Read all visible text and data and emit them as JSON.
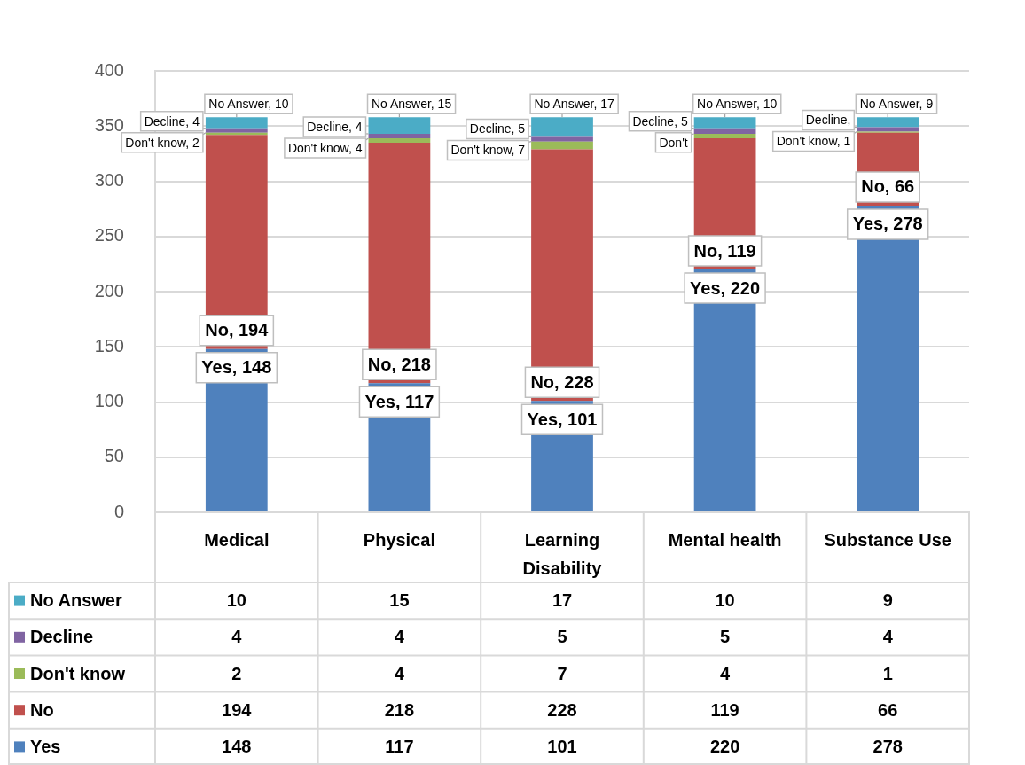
{
  "chart_data": {
    "type": "bar",
    "stacked": true,
    "categories": [
      "Medical",
      "Physical",
      "Learning Disability",
      "Mental health",
      "Substance Use"
    ],
    "series": [
      {
        "name": "Yes",
        "color": "#4f81bd",
        "values": [
          148,
          117,
          101,
          220,
          278
        ]
      },
      {
        "name": "No",
        "color": "#c0504d",
        "values": [
          194,
          218,
          228,
          119,
          66
        ]
      },
      {
        "name": "Don't know",
        "color": "#9bbb59",
        "values": [
          2,
          4,
          7,
          4,
          1
        ]
      },
      {
        "name": "Decline",
        "color": "#8064a2",
        "values": [
          4,
          4,
          5,
          5,
          4
        ]
      },
      {
        "name": "No Answer",
        "color": "#4bacc6",
        "values": [
          10,
          15,
          17,
          10,
          9
        ]
      }
    ],
    "ylim": [
      0,
      400
    ],
    "yticks": [
      0,
      50,
      100,
      150,
      200,
      250,
      300,
      350,
      400
    ],
    "grid": "y",
    "legend": "bottom",
    "data_labels": true,
    "annotations": [
      {
        "text": "Yes, 148",
        "x": "Medical",
        "y": 148
      },
      {
        "text": "No, 194",
        "x": "Medical",
        "y": 148
      },
      {
        "text": "Don't know, 2",
        "x": "Medical",
        "y": 344
      },
      {
        "text": "Decline, 4",
        "x": "Medical",
        "y": 348
      },
      {
        "text": "No Answer, 10",
        "x": "Medical",
        "y": 358
      },
      {
        "text": "Yes, 117",
        "x": "Physical",
        "y": 117
      },
      {
        "text": "No, 218",
        "x": "Physical",
        "y": 117
      },
      {
        "text": "Don't know, 4",
        "x": "Physical",
        "y": 339
      },
      {
        "text": "Decline, 4",
        "x": "Physical",
        "y": 343
      },
      {
        "text": "No Answer, 15",
        "x": "Physical",
        "y": 358
      },
      {
        "text": "Yes, 101",
        "x": "Learning Disability",
        "y": 101
      },
      {
        "text": "No, 228",
        "x": "Learning Disability",
        "y": 101
      },
      {
        "text": "Don't know, 7",
        "x": "Learning Disability",
        "y": 336
      },
      {
        "text": "Decline, 5",
        "x": "Learning Disability",
        "y": 341
      },
      {
        "text": "No Answer, 17",
        "x": "Learning Disability",
        "y": 358
      },
      {
        "text": "Yes, 220",
        "x": "Mental health",
        "y": 220
      },
      {
        "text": "No, 119",
        "x": "Mental health",
        "y": 220
      },
      {
        "text": "Don't",
        "x": "Mental health",
        "y": 343
      },
      {
        "text": "Decline, 5",
        "x": "Mental health",
        "y": 348
      },
      {
        "text": "No Answer, 10",
        "x": "Mental health",
        "y": 358
      },
      {
        "text": "Yes, 278",
        "x": "Substance Use",
        "y": 278
      },
      {
        "text": "No, 66",
        "x": "Substance Use",
        "y": 278
      },
      {
        "text": "Don't know, 1",
        "x": "Substance Use",
        "y": 345
      },
      {
        "text": "Decline,",
        "x": "Substance Use",
        "y": 349
      },
      {
        "text": "No Answer, 9",
        "x": "Substance Use",
        "y": 358
      }
    ]
  }
}
